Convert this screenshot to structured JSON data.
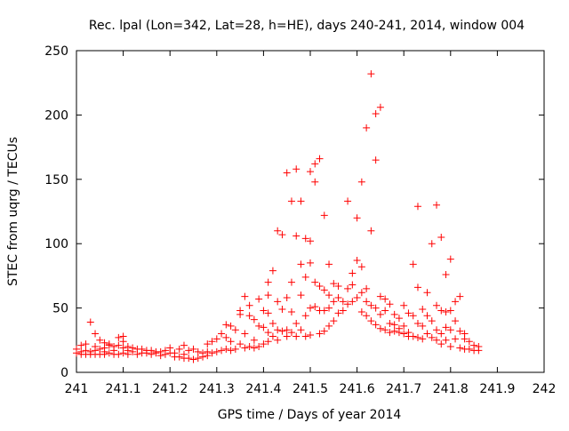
{
  "chart_data": {
    "type": "scatter",
    "title": "Rec. lpal (Lon=342, Lat=28, h=HE), days 240-241, 2014, window 004",
    "xlabel": "GPS time / Days of year 2014",
    "ylabel": "STEC from uqrg / TECUs",
    "xlim": [
      241,
      242
    ],
    "ylim": [
      0,
      250
    ],
    "x_ticks": [
      241,
      241.1,
      241.2,
      241.3,
      241.4,
      241.5,
      241.6,
      241.7,
      241.8,
      241.9,
      242
    ],
    "x_tick_labels": [
      "241",
      "241.1",
      "241.2",
      "241.3",
      "241.4",
      "241.5",
      "241.6",
      "241.7",
      "241.8",
      "241.9",
      "242"
    ],
    "y_ticks": [
      0,
      50,
      100,
      150,
      200,
      250
    ],
    "y_tick_labels": [
      "0",
      "50",
      "100",
      "150",
      "200",
      "250"
    ],
    "grid": false,
    "marker": "+",
    "color": "#ff0000",
    "points": [
      [
        241.0,
        18
      ],
      [
        241.0,
        15
      ],
      [
        241.01,
        16
      ],
      [
        241.01,
        21
      ],
      [
        241.01,
        14
      ],
      [
        241.02,
        17
      ],
      [
        241.02,
        14
      ],
      [
        241.02,
        22
      ],
      [
        241.03,
        39
      ],
      [
        241.03,
        16
      ],
      [
        241.03,
        14
      ],
      [
        241.04,
        30
      ],
      [
        241.04,
        20
      ],
      [
        241.04,
        17
      ],
      [
        241.04,
        14
      ],
      [
        241.05,
        25
      ],
      [
        241.05,
        18
      ],
      [
        241.05,
        14
      ],
      [
        241.06,
        23
      ],
      [
        241.06,
        19
      ],
      [
        241.06,
        16
      ],
      [
        241.06,
        14
      ],
      [
        241.07,
        21
      ],
      [
        241.07,
        22
      ],
      [
        241.07,
        15
      ],
      [
        241.08,
        20
      ],
      [
        241.08,
        17
      ],
      [
        241.08,
        14
      ],
      [
        241.09,
        27
      ],
      [
        241.09,
        21
      ],
      [
        241.09,
        14
      ],
      [
        241.1,
        28
      ],
      [
        241.1,
        24
      ],
      [
        241.1,
        19
      ],
      [
        241.1,
        15
      ],
      [
        241.11,
        20
      ],
      [
        241.11,
        17
      ],
      [
        241.11,
        14
      ],
      [
        241.12,
        19
      ],
      [
        241.12,
        16
      ],
      [
        241.13,
        18
      ],
      [
        241.13,
        14
      ],
      [
        241.14,
        18
      ],
      [
        241.14,
        15
      ],
      [
        241.15,
        17
      ],
      [
        241.15,
        15
      ],
      [
        241.16,
        17
      ],
      [
        241.16,
        14
      ],
      [
        241.17,
        16
      ],
      [
        241.17,
        15
      ],
      [
        241.18,
        16
      ],
      [
        241.18,
        13
      ],
      [
        241.19,
        17
      ],
      [
        241.19,
        14
      ],
      [
        241.2,
        19
      ],
      [
        241.2,
        15
      ],
      [
        241.21,
        15
      ],
      [
        241.21,
        12
      ],
      [
        241.22,
        18
      ],
      [
        241.22,
        12
      ],
      [
        241.23,
        21
      ],
      [
        241.23,
        14
      ],
      [
        241.23,
        11
      ],
      [
        241.24,
        17
      ],
      [
        241.24,
        11
      ],
      [
        241.25,
        18
      ],
      [
        241.25,
        10
      ],
      [
        241.26,
        16
      ],
      [
        241.26,
        11
      ],
      [
        241.27,
        15
      ],
      [
        241.27,
        12
      ],
      [
        241.28,
        22
      ],
      [
        241.28,
        16
      ],
      [
        241.28,
        13
      ],
      [
        241.29,
        24
      ],
      [
        241.29,
        15
      ],
      [
        241.3,
        26
      ],
      [
        241.3,
        16
      ],
      [
        241.31,
        30
      ],
      [
        241.31,
        17
      ],
      [
        241.32,
        37
      ],
      [
        241.32,
        27
      ],
      [
        241.32,
        18
      ],
      [
        241.33,
        36
      ],
      [
        241.33,
        24
      ],
      [
        241.33,
        17
      ],
      [
        241.34,
        33
      ],
      [
        241.34,
        18
      ],
      [
        241.35,
        48
      ],
      [
        241.35,
        45
      ],
      [
        241.35,
        22
      ],
      [
        241.36,
        59
      ],
      [
        241.36,
        30
      ],
      [
        241.36,
        19
      ],
      [
        241.37,
        52
      ],
      [
        241.37,
        44
      ],
      [
        241.37,
        20
      ],
      [
        241.38,
        41
      ],
      [
        241.38,
        25
      ],
      [
        241.38,
        19
      ],
      [
        241.39,
        57
      ],
      [
        241.39,
        36
      ],
      [
        241.39,
        20
      ],
      [
        241.4,
        48
      ],
      [
        241.4,
        35
      ],
      [
        241.4,
        22
      ],
      [
        241.41,
        70
      ],
      [
        241.41,
        60
      ],
      [
        241.41,
        46
      ],
      [
        241.41,
        31
      ],
      [
        241.41,
        24
      ],
      [
        241.42,
        79
      ],
      [
        241.42,
        38
      ],
      [
        241.42,
        28
      ],
      [
        241.43,
        110
      ],
      [
        241.43,
        55
      ],
      [
        241.43,
        33
      ],
      [
        241.43,
        25
      ],
      [
        241.44,
        107
      ],
      [
        241.44,
        49
      ],
      [
        241.44,
        32
      ],
      [
        241.45,
        155
      ],
      [
        241.45,
        58
      ],
      [
        241.45,
        33
      ],
      [
        241.45,
        28
      ],
      [
        241.46,
        133
      ],
      [
        241.46,
        70
      ],
      [
        241.46,
        47
      ],
      [
        241.46,
        31
      ],
      [
        241.47,
        158
      ],
      [
        241.47,
        106
      ],
      [
        241.47,
        38
      ],
      [
        241.47,
        28
      ],
      [
        241.48,
        133
      ],
      [
        241.48,
        84
      ],
      [
        241.48,
        60
      ],
      [
        241.48,
        33
      ],
      [
        241.49,
        104
      ],
      [
        241.49,
        74
      ],
      [
        241.49,
        44
      ],
      [
        241.49,
        28
      ],
      [
        241.5,
        156
      ],
      [
        241.5,
        102
      ],
      [
        241.5,
        85
      ],
      [
        241.5,
        50
      ],
      [
        241.5,
        29
      ],
      [
        241.51,
        162
      ],
      [
        241.51,
        148
      ],
      [
        241.51,
        70
      ],
      [
        241.51,
        51
      ],
      [
        241.52,
        166
      ],
      [
        241.52,
        67
      ],
      [
        241.52,
        48
      ],
      [
        241.52,
        30
      ],
      [
        241.53,
        122
      ],
      [
        241.53,
        64
      ],
      [
        241.53,
        48
      ],
      [
        241.53,
        32
      ],
      [
        241.54,
        84
      ],
      [
        241.54,
        60
      ],
      [
        241.54,
        50
      ],
      [
        241.54,
        36
      ],
      [
        241.55,
        69
      ],
      [
        241.55,
        55
      ],
      [
        241.55,
        40
      ],
      [
        241.56,
        67
      ],
      [
        241.56,
        58
      ],
      [
        241.56,
        46
      ],
      [
        241.57,
        55
      ],
      [
        241.57,
        48
      ],
      [
        241.58,
        133
      ],
      [
        241.58,
        65
      ],
      [
        241.58,
        53
      ],
      [
        241.59,
        77
      ],
      [
        241.59,
        68
      ],
      [
        241.59,
        55
      ],
      [
        241.6,
        120
      ],
      [
        241.6,
        87
      ],
      [
        241.6,
        58
      ],
      [
        241.61,
        148
      ],
      [
        241.61,
        82
      ],
      [
        241.61,
        62
      ],
      [
        241.61,
        47
      ],
      [
        241.62,
        190
      ],
      [
        241.62,
        65
      ],
      [
        241.62,
        55
      ],
      [
        241.62,
        44
      ],
      [
        241.63,
        232
      ],
      [
        241.63,
        110
      ],
      [
        241.63,
        52
      ],
      [
        241.63,
        40
      ],
      [
        241.64,
        201
      ],
      [
        241.64,
        165
      ],
      [
        241.64,
        50
      ],
      [
        241.64,
        37
      ],
      [
        241.65,
        206
      ],
      [
        241.65,
        59
      ],
      [
        241.65,
        45
      ],
      [
        241.65,
        34
      ],
      [
        241.66,
        57
      ],
      [
        241.66,
        48
      ],
      [
        241.66,
        33
      ],
      [
        241.67,
        53
      ],
      [
        241.67,
        38
      ],
      [
        241.67,
        31
      ],
      [
        241.68,
        45
      ],
      [
        241.68,
        37
      ],
      [
        241.68,
        32
      ],
      [
        241.69,
        42
      ],
      [
        241.69,
        34
      ],
      [
        241.69,
        31
      ],
      [
        241.7,
        52
      ],
      [
        241.7,
        36
      ],
      [
        241.7,
        30
      ],
      [
        241.71,
        46
      ],
      [
        241.71,
        31
      ],
      [
        241.71,
        28
      ],
      [
        241.72,
        84
      ],
      [
        241.72,
        44
      ],
      [
        241.72,
        28
      ],
      [
        241.73,
        129
      ],
      [
        241.73,
        66
      ],
      [
        241.73,
        38
      ],
      [
        241.73,
        27
      ],
      [
        241.74,
        49
      ],
      [
        241.74,
        36
      ],
      [
        241.74,
        26
      ],
      [
        241.75,
        62
      ],
      [
        241.75,
        44
      ],
      [
        241.75,
        30
      ],
      [
        241.76,
        100
      ],
      [
        241.76,
        40
      ],
      [
        241.76,
        27
      ],
      [
        241.77,
        130
      ],
      [
        241.77,
        52
      ],
      [
        241.77,
        33
      ],
      [
        241.77,
        25
      ],
      [
        241.78,
        105
      ],
      [
        241.78,
        48
      ],
      [
        241.78,
        30
      ],
      [
        241.78,
        22
      ],
      [
        241.79,
        76
      ],
      [
        241.79,
        47
      ],
      [
        241.79,
        35
      ],
      [
        241.79,
        25
      ],
      [
        241.8,
        88
      ],
      [
        241.8,
        48
      ],
      [
        241.8,
        33
      ],
      [
        241.8,
        20
      ],
      [
        241.81,
        55
      ],
      [
        241.81,
        40
      ],
      [
        241.81,
        26
      ],
      [
        241.82,
        59
      ],
      [
        241.82,
        32
      ],
      [
        241.82,
        19
      ],
      [
        241.83,
        30
      ],
      [
        241.83,
        26
      ],
      [
        241.83,
        18
      ],
      [
        241.84,
        24
      ],
      [
        241.84,
        18
      ],
      [
        241.85,
        21
      ],
      [
        241.85,
        17
      ],
      [
        241.86,
        20
      ],
      [
        241.86,
        17
      ]
    ]
  }
}
